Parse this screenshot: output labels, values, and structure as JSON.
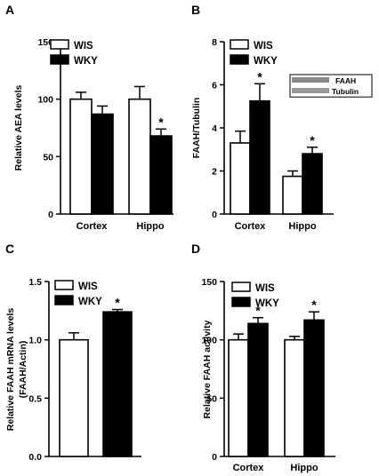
{
  "chart_data": [
    {
      "panel": "A",
      "type": "bar",
      "ylabel": "Relative AEA levels",
      "ylim": [
        0,
        150
      ],
      "yticks": [
        "0",
        "50",
        "100",
        "150"
      ],
      "categories": [
        "Cortex",
        "Hippo"
      ],
      "series": [
        {
          "name": "WIS",
          "fill": "#ffffff",
          "values": [
            100,
            100
          ],
          "err": [
            6,
            11
          ]
        },
        {
          "name": "WKY",
          "fill": "#000000",
          "values": [
            87,
            68
          ],
          "err": [
            7,
            6
          ]
        }
      ],
      "annotations": [
        {
          "category": 1,
          "series": 1,
          "text": "*"
        }
      ],
      "legend": "top-left"
    },
    {
      "panel": "B",
      "type": "bar",
      "ylabel": "FAAH/Tubulin",
      "ylim": [
        0,
        8
      ],
      "yticks": [
        "0",
        "2",
        "4",
        "6",
        "8"
      ],
      "categories": [
        "Cortex",
        "Hippo"
      ],
      "series": [
        {
          "name": "WIS",
          "fill": "#ffffff",
          "values": [
            3.3,
            1.75
          ],
          "err": [
            0.55,
            0.25
          ]
        },
        {
          "name": "WKY",
          "fill": "#000000",
          "values": [
            5.25,
            2.8
          ],
          "err": [
            0.8,
            0.3
          ]
        }
      ],
      "annotations": [
        {
          "category": 0,
          "series": 1,
          "text": "*"
        },
        {
          "category": 1,
          "series": 1,
          "text": "*"
        }
      ],
      "inset_labels": [
        "FAAH",
        "Tubulin"
      ],
      "legend": "top-left"
    },
    {
      "panel": "C",
      "type": "bar",
      "ylabel": "Relative FAAH mRNA levels",
      "ylabel2": "(FAAH/Actin)",
      "ylim": [
        0,
        1.5
      ],
      "yticks": [
        "0.0",
        "0.5",
        "1.0",
        "1.5"
      ],
      "categories": [
        ""
      ],
      "series": [
        {
          "name": "WIS",
          "fill": "#ffffff",
          "values": [
            1.0
          ],
          "err": [
            0.06
          ]
        },
        {
          "name": "WKY",
          "fill": "#000000",
          "values": [
            1.24
          ],
          "err": [
            0.02
          ]
        }
      ],
      "annotations": [
        {
          "category": 0,
          "series": 1,
          "text": "*"
        }
      ],
      "legend": "top-left"
    },
    {
      "panel": "D",
      "type": "bar",
      "ylabel": "Relative FAAH activity",
      "ylim": [
        0,
        150
      ],
      "yticks": [
        "0",
        "50",
        "100",
        "150"
      ],
      "categories": [
        "Cortex",
        "Hippo"
      ],
      "series": [
        {
          "name": "WIS",
          "fill": "#ffffff",
          "values": [
            100,
            100
          ],
          "err": [
            5,
            3
          ]
        },
        {
          "name": "WKY",
          "fill": "#000000",
          "values": [
            114,
            117
          ],
          "err": [
            5,
            7
          ]
        }
      ],
      "annotations": [
        {
          "category": 0,
          "series": 1,
          "text": "*"
        },
        {
          "category": 1,
          "series": 1,
          "text": "*"
        }
      ],
      "legend": "top-left"
    }
  ]
}
